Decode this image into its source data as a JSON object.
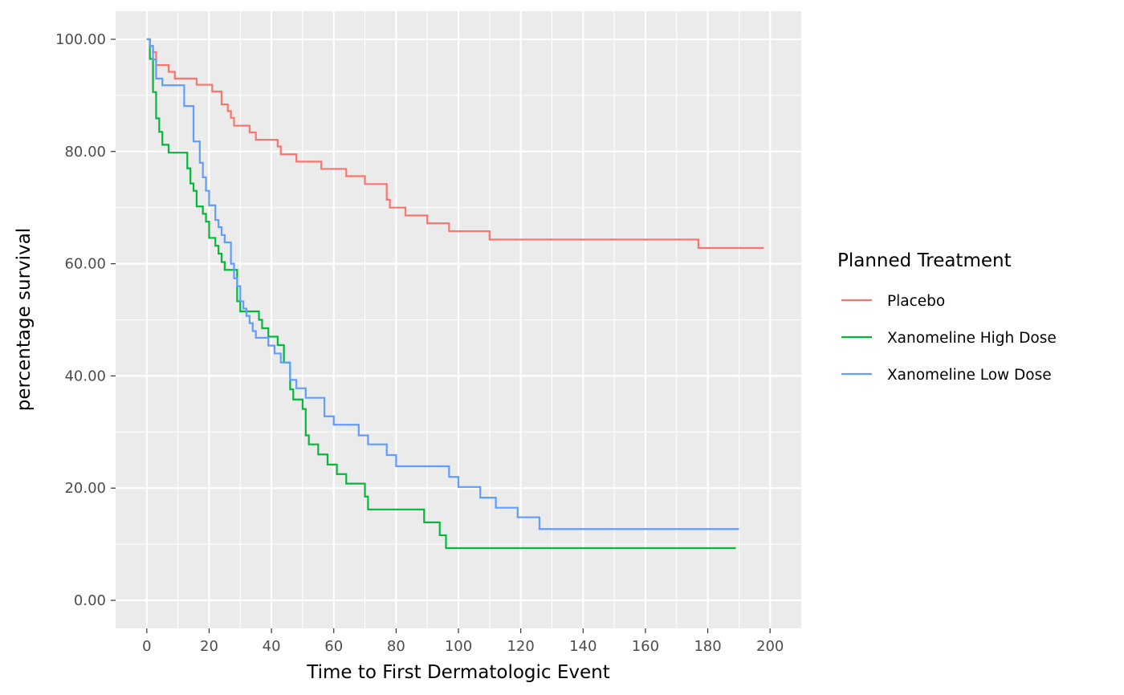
{
  "chart_data": {
    "type": "line",
    "step": true,
    "title": "",
    "xlabel": "Time to First Dermatologic Event",
    "ylabel": "percentage survival",
    "xlim": [
      -10,
      210
    ],
    "ylim": [
      -5,
      105
    ],
    "x_ticks": [
      0,
      20,
      40,
      60,
      80,
      100,
      120,
      140,
      160,
      180,
      200
    ],
    "x_tick_labels": [
      "0",
      "20",
      "40",
      "60",
      "80",
      "100",
      "120",
      "140",
      "160",
      "180",
      "200"
    ],
    "y_ticks": [
      0,
      20,
      40,
      60,
      80,
      100
    ],
    "y_tick_labels": [
      "0.00",
      "20.00",
      "40.00",
      "60.00",
      "80.00",
      "100.00"
    ],
    "grid": true,
    "panel_background": "#ebebeb",
    "legend": {
      "title": "Planned Treatment",
      "position": "right"
    },
    "series": [
      {
        "name": "Placebo",
        "color": "#F8766D",
        "x": [
          0,
          1,
          2,
          3,
          7,
          9,
          16,
          21,
          24,
          26,
          27,
          28,
          33,
          35,
          42,
          43,
          48,
          56,
          64,
          70,
          77,
          78,
          83,
          90,
          97,
          110,
          177,
          198
        ],
        "y": [
          100,
          98.8,
          97.7,
          95.4,
          94.2,
          93.0,
          91.9,
          90.7,
          88.4,
          87.2,
          86.0,
          84.6,
          83.4,
          82.1,
          80.9,
          79.5,
          78.2,
          76.9,
          75.6,
          74.2,
          71.4,
          70.0,
          68.6,
          67.2,
          65.8,
          64.3,
          62.8,
          62.8
        ]
      },
      {
        "name": "Xanomeline High Dose",
        "color": "#00BA38",
        "x": [
          0,
          1,
          2,
          3,
          4,
          5,
          7,
          13,
          14,
          15,
          16,
          18,
          19,
          20,
          22,
          23,
          24,
          25,
          29,
          30,
          36,
          37,
          39,
          42,
          44,
          46,
          47,
          50,
          51,
          52,
          55,
          58,
          61,
          64,
          70,
          71,
          89,
          94,
          96,
          189
        ],
        "y": [
          100,
          96.5,
          90.6,
          85.9,
          83.5,
          81.2,
          79.8,
          77.0,
          74.3,
          73.0,
          70.2,
          68.9,
          67.5,
          64.6,
          63.2,
          61.8,
          60.3,
          58.9,
          53.3,
          51.5,
          50.0,
          48.5,
          47.0,
          45.5,
          42.4,
          37.6,
          35.8,
          34.1,
          29.4,
          27.8,
          26.0,
          24.2,
          22.5,
          20.8,
          18.5,
          16.2,
          13.9,
          11.6,
          9.3,
          9.3
        ]
      },
      {
        "name": "Xanomeline Low Dose",
        "color": "#619CFF",
        "x": [
          0,
          1,
          2,
          3,
          5,
          12,
          15,
          17,
          18,
          19,
          20,
          22,
          23,
          24,
          25,
          27,
          28,
          29,
          30,
          31,
          32,
          33,
          34,
          35,
          39,
          41,
          43,
          46,
          48,
          51,
          57,
          60,
          68,
          71,
          77,
          80,
          97,
          100,
          107,
          112,
          119,
          126,
          190
        ],
        "y": [
          100,
          98.8,
          96.4,
          93.0,
          91.8,
          88.1,
          81.8,
          78.0,
          75.4,
          73.0,
          70.4,
          67.8,
          66.5,
          65.1,
          63.8,
          60.0,
          57.4,
          56.0,
          53.3,
          52.0,
          50.7,
          49.4,
          48.0,
          46.8,
          45.4,
          44.0,
          42.4,
          39.3,
          37.8,
          36.1,
          32.8,
          31.3,
          29.4,
          27.8,
          25.9,
          23.9,
          22.0,
          20.2,
          18.3,
          16.5,
          14.8,
          12.7,
          12.7
        ]
      }
    ]
  }
}
